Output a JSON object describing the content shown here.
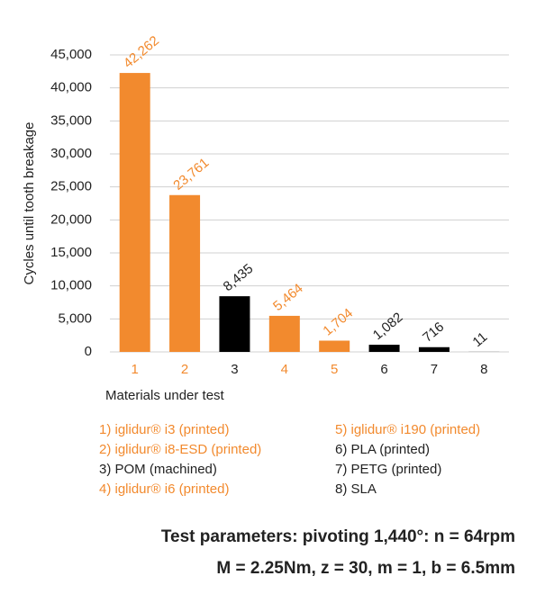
{
  "chart_data": {
    "type": "bar",
    "ylabel": "Cycles until tooth breakage",
    "xlabel": "Materials under test",
    "categories": [
      "1",
      "2",
      "3",
      "4",
      "5",
      "6",
      "7",
      "8"
    ],
    "values": [
      42262,
      23761,
      8435,
      5464,
      1704,
      1082,
      716,
      11
    ],
    "value_labels": [
      "42,262",
      "23,761",
      "8,435",
      "5,464",
      "1,704",
      "1,082",
      "716",
      "11"
    ],
    "colors": [
      "#f28a2e",
      "#f28a2e",
      "#000000",
      "#f28a2e",
      "#f28a2e",
      "#000000",
      "#000000",
      "#000000"
    ],
    "ylim": [
      0,
      45000
    ],
    "yticks": [
      0,
      {
        "value": 5000,
        "label": "5,000"
      },
      {
        "value": 10000,
        "label": "10,000"
      },
      {
        "value": 15000,
        "label": "15,000"
      },
      {
        "value": 20000,
        "label": "20,000"
      },
      {
        "value": 25000,
        "label": "25,000"
      },
      {
        "value": 30000,
        "label": "30,000"
      },
      {
        "value": 35000,
        "label": "35,000"
      },
      {
        "value": 40000,
        "label": "40,000"
      },
      {
        "value": 45000,
        "label": "45,000"
      }
    ],
    "grid": true,
    "legend": [
      {
        "text": "1) iglidur® i3 (printed)",
        "color": "#f28a2e"
      },
      {
        "text": "2) iglidur® i8-ESD (printed)",
        "color": "#f28a2e"
      },
      {
        "text": "3) POM (machined)",
        "color": "#000000"
      },
      {
        "text": "4) iglidur® i6 (printed)",
        "color": "#f28a2e"
      },
      {
        "text": "5) iglidur® i190 (printed)",
        "color": "#f28a2e"
      },
      {
        "text": "6) PLA (printed)",
        "color": "#000000"
      },
      {
        "text": "7) PETG (printed)",
        "color": "#000000"
      },
      {
        "text": "8) SLA",
        "color": "#000000"
      }
    ],
    "notes": [
      "Test parameters: pivoting 1,440°: n = 64rpm",
      "M = 2.25Nm, z = 30, m = 1, b  = 6.5mm"
    ]
  }
}
